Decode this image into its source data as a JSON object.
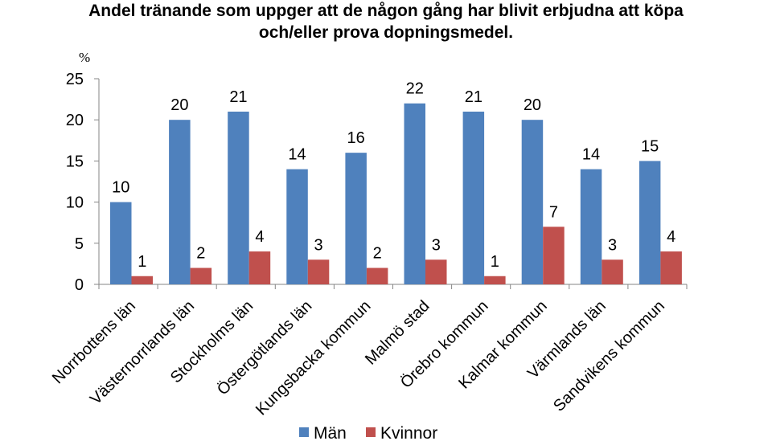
{
  "chart_data": {
    "type": "bar",
    "title_lines": [
      "Andel tränande som uppger att de någon gång har blivit erbjudna att köpa",
      "och/eller prova dopningsmedel."
    ],
    "ylabel": "%",
    "ylim": [
      0,
      25
    ],
    "yticks": [
      "0",
      "5",
      "10",
      "15",
      "20",
      "25"
    ],
    "categories": [
      "Norrbottens län",
      "Västernorrlands län",
      "Stockholms län",
      "Östergötlands län",
      "Kungsbacka kommun",
      "Malmö stad",
      "Örebro kommun",
      "Kalmar kommun",
      "Värmlands län",
      "Sandvikens kommun"
    ],
    "series": [
      {
        "name": "Män",
        "color": "#4F81BD",
        "values": [
          10,
          20,
          21,
          14,
          16,
          22,
          21,
          20,
          14,
          15
        ]
      },
      {
        "name": "Kvinnor",
        "color": "#C0504D",
        "values": [
          1,
          2,
          4,
          3,
          2,
          3,
          1,
          7,
          3,
          4
        ]
      }
    ],
    "grid": false,
    "legend_position": "bottom"
  }
}
